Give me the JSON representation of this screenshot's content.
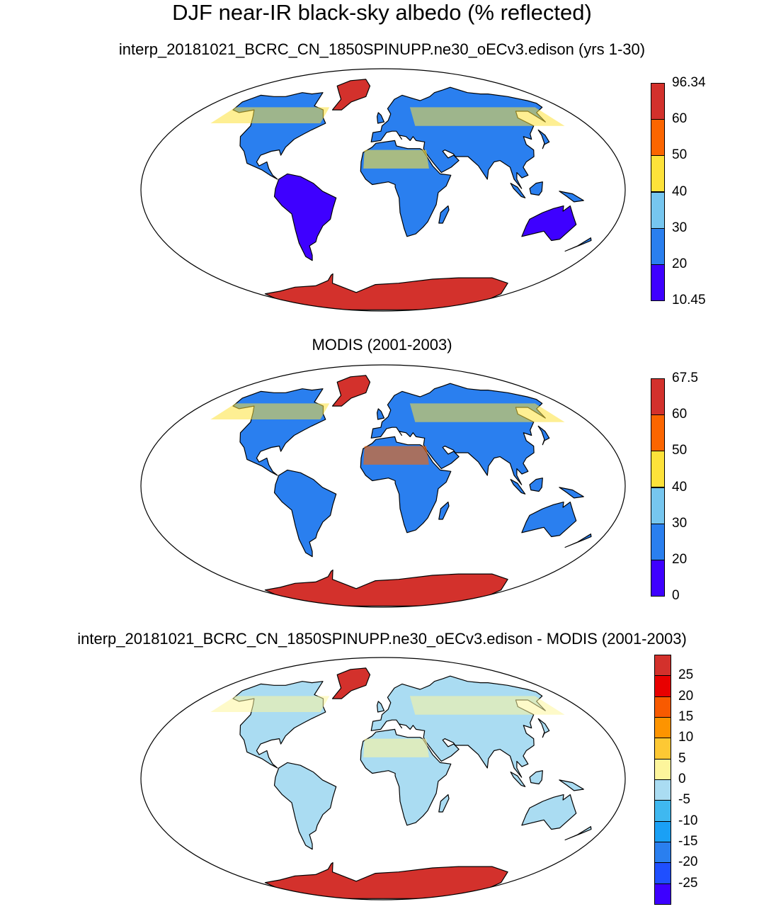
{
  "title": "DJF near-IR black-sky albedo (% reflected)",
  "panels": [
    {
      "id": "model",
      "title": "interp_20181021_BCRC_CN_1850SPINUPP.ne30_oECv3.edison (yrs 1-30)",
      "colorbar": {
        "colors": [
          "#3e00ff",
          "#2a7fef",
          "#76c6ef",
          "#fde23a",
          "#fb6500",
          "#d3312c"
        ],
        "labels": [
          "10.45",
          "20",
          "30",
          "40",
          "50",
          "60",
          "96.34"
        ]
      }
    },
    {
      "id": "obs",
      "title": "MODIS (2001-2003)",
      "colorbar": {
        "colors": [
          "#3e00ff",
          "#2a7fef",
          "#76c6ef",
          "#fde23a",
          "#fb6500",
          "#d3312c"
        ],
        "labels": [
          "0",
          "20",
          "30",
          "40",
          "50",
          "60",
          "67.5"
        ]
      }
    },
    {
      "id": "diff",
      "title": "interp_20181021_BCRC_CN_1850SPINUPP.ne30_oECv3.edison - MODIS (2001-2003)",
      "colorbar": {
        "colors": [
          "#3d00ff",
          "#1f4fff",
          "#2a7fef",
          "#1aa0f5",
          "#3fb8f0",
          "#aadcf2",
          "#fdf59c",
          "#fdc834",
          "#fd9400",
          "#f85a00",
          "#e80000",
          "#d3312c"
        ],
        "labels": [
          "",
          "-25",
          "-20",
          "-15",
          "-10",
          "-5",
          "0",
          "5",
          "10",
          "15",
          "20",
          "25",
          ""
        ]
      }
    }
  ]
}
